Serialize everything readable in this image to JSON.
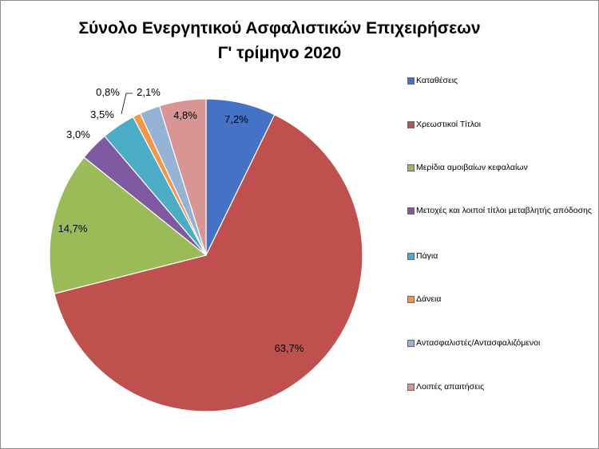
{
  "chart_data": {
    "type": "pie",
    "title": "Σύνολο Ενεργητικού Ασφαλιστικών Επιχειρήσεων",
    "subtitle": "Γ' τρίμηνο 2020",
    "legend_position": "right",
    "slices": [
      {
        "label": "Καταθέσεις",
        "value": 7.2,
        "display": "7,2%",
        "color": "#4472c4"
      },
      {
        "label": "Χρεωστικοί Τίτλοι",
        "value": 63.7,
        "display": "63,7%",
        "color": "#c0504d"
      },
      {
        "label": "Μερίδια αμοιβαίων κεφαλαίων",
        "value": 14.7,
        "display": "14,7%",
        "color": "#9bbb59"
      },
      {
        "label": "Μετοχές και λοιποί τίτλοι μεταβλητής απόδοσης",
        "value": 3.0,
        "display": "3,0%",
        "color": "#7f5aa2"
      },
      {
        "label": "Πάγια",
        "value": 3.5,
        "display": "3,5%",
        "color": "#4bacc6"
      },
      {
        "label": "Δάνεια",
        "value": 0.8,
        "display": "0,8%",
        "color": "#f79646"
      },
      {
        "label": "Αντασφαλιστές/Αντασφαλιζόμενοι",
        "value": 2.1,
        "display": "2,1%",
        "color": "#95b3d7"
      },
      {
        "label": "Λοιπές απαιτήσεις",
        "value": 4.8,
        "display": "4,8%",
        "color": "#d99594"
      }
    ]
  }
}
